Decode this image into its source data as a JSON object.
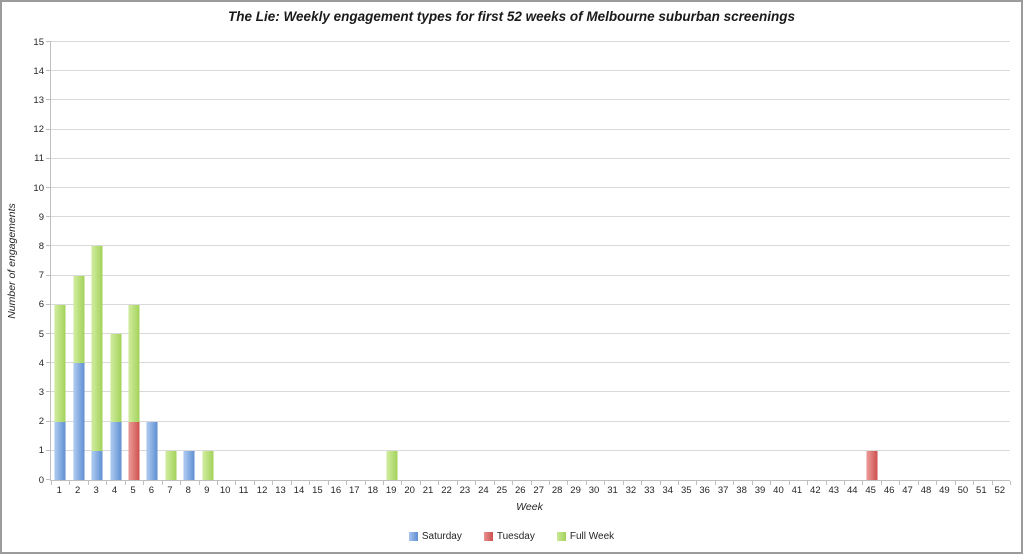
{
  "chart_data": {
    "type": "bar",
    "stacked": true,
    "title": "The Lie: Weekly engagement types for first 52 weeks of Melbourne suburban screenings",
    "xlabel": "Week",
    "ylabel": "Number of engagements",
    "ylim": [
      0,
      15
    ],
    "ytick_step": 1,
    "grid": true,
    "legend_position": "bottom",
    "categories": [
      "1",
      "2",
      "3",
      "4",
      "5",
      "6",
      "7",
      "8",
      "9",
      "10",
      "11",
      "12",
      "13",
      "14",
      "15",
      "16",
      "17",
      "18",
      "19",
      "20",
      "21",
      "22",
      "23",
      "24",
      "25",
      "26",
      "27",
      "28",
      "29",
      "30",
      "31",
      "32",
      "33",
      "34",
      "35",
      "36",
      "37",
      "38",
      "39",
      "40",
      "41",
      "42",
      "43",
      "44",
      "45",
      "46",
      "47",
      "48",
      "49",
      "50",
      "51",
      "52"
    ],
    "series": [
      {
        "name": "Saturday",
        "color": "#5e8ed2",
        "color_light": "#a6c4ee",
        "values": [
          2,
          4,
          1,
          2,
          0,
          2,
          0,
          1,
          0,
          0,
          0,
          0,
          0,
          0,
          0,
          0,
          0,
          0,
          0,
          0,
          0,
          0,
          0,
          0,
          0,
          0,
          0,
          0,
          0,
          0,
          0,
          0,
          0,
          0,
          0,
          0,
          0,
          0,
          0,
          0,
          0,
          0,
          0,
          0,
          0,
          0,
          0,
          0,
          0,
          0,
          0,
          0
        ]
      },
      {
        "name": "Tuesday",
        "color": "#cd504d",
        "color_light": "#e89390",
        "values": [
          0,
          0,
          0,
          0,
          2,
          0,
          0,
          0,
          0,
          0,
          0,
          0,
          0,
          0,
          0,
          0,
          0,
          0,
          0,
          0,
          0,
          0,
          0,
          0,
          0,
          0,
          0,
          0,
          0,
          0,
          0,
          0,
          0,
          0,
          0,
          0,
          0,
          0,
          0,
          0,
          0,
          0,
          0,
          0,
          1,
          0,
          0,
          0,
          0,
          0,
          0,
          0
        ]
      },
      {
        "name": "Full Week",
        "color": "#a3d25a",
        "color_light": "#cbe996",
        "values": [
          4,
          3,
          7,
          3,
          4,
          0,
          1,
          0,
          1,
          0,
          0,
          0,
          0,
          0,
          0,
          0,
          0,
          0,
          1,
          0,
          0,
          0,
          0,
          0,
          0,
          0,
          0,
          0,
          0,
          0,
          0,
          0,
          0,
          0,
          0,
          0,
          0,
          0,
          0,
          0,
          0,
          0,
          0,
          0,
          0,
          0,
          0,
          0,
          0,
          0,
          0,
          0
        ]
      }
    ],
    "colors": {
      "gridline": "#d9d9d9",
      "axis": "#bfbfbf",
      "text": "#262626"
    }
  }
}
